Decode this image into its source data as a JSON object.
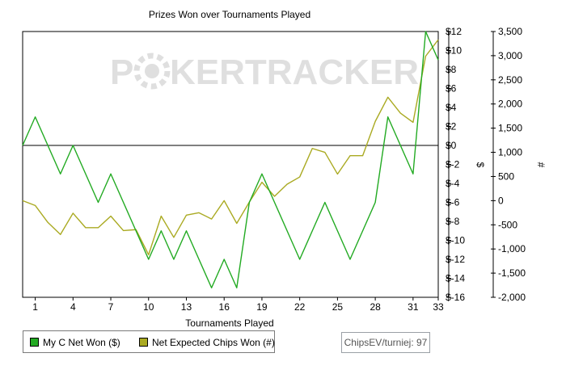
{
  "watermark": {
    "text_left": "P",
    "text_mid": "KERTRACKER"
  },
  "legend": {
    "items": [
      {
        "label": "My C Net Won ($)",
        "color": "#22aa22"
      },
      {
        "label": "Net Expected Chips Won (#)",
        "color": "#aaaa22"
      }
    ]
  },
  "badge": {
    "text": "ChipsEV/turniej: 97"
  },
  "chart_data": {
    "type": "line",
    "title": "Prizes Won over Tournaments Played",
    "xlabel": "Tournaments Played",
    "ylabel_right_inner": "$",
    "ylabel_right_outer": "#",
    "xlim": [
      0,
      33
    ],
    "x_ticks": [
      1,
      4,
      7,
      10,
      13,
      16,
      19,
      22,
      25,
      28,
      31,
      33
    ],
    "y_left": {
      "lim": [
        -16,
        12
      ],
      "ticks": [
        12,
        10,
        8,
        6,
        4,
        2,
        0,
        -2,
        -4,
        -6,
        -8,
        -10,
        -12,
        -14,
        -16
      ],
      "tick_labels": [
        "$12",
        "$10",
        "$8",
        "$6",
        "$4",
        "$2",
        "$0",
        "$-2",
        "$-4",
        "$-6",
        "$-8",
        "$-10",
        "$-12",
        "$-14",
        "$-16"
      ]
    },
    "y_right": {
      "lim": [
        -2000,
        3500
      ],
      "ticks": [
        3500,
        3000,
        2500,
        2000,
        1500,
        1000,
        500,
        0,
        -500,
        -1000,
        -1500,
        -2000
      ],
      "tick_labels": [
        "3,500",
        "3,000",
        "2,500",
        "2,000",
        "1,500",
        "1,000",
        "500",
        "0",
        "-500",
        "-1,000",
        "-1,500",
        "-2,000"
      ]
    },
    "zero_line": 0,
    "grid": false,
    "series": [
      {
        "name": "My C Net Won ($)",
        "axis": "left",
        "color": "#22aa22",
        "x": [
          0,
          1,
          2,
          3,
          4,
          5,
          6,
          7,
          8,
          9,
          10,
          11,
          12,
          13,
          14,
          15,
          16,
          17,
          18,
          19,
          20,
          21,
          22,
          23,
          24,
          25,
          26,
          27,
          28,
          29,
          30,
          31,
          32,
          33
        ],
        "y": [
          0,
          3,
          0,
          -3,
          0,
          -3,
          -6,
          -3,
          -6,
          -9,
          -12,
          -9,
          -12,
          -9,
          -12,
          -15,
          -12,
          -15,
          -6,
          -3,
          -6,
          -9,
          -12,
          -9,
          -6,
          -9,
          -12,
          -9,
          -6,
          3,
          0,
          -3,
          12,
          9
        ]
      },
      {
        "name": "Net Expected Chips Won (#)",
        "axis": "right",
        "color": "#aaaa22",
        "x": [
          0,
          1,
          2,
          3,
          4,
          5,
          6,
          7,
          8,
          9,
          10,
          11,
          12,
          13,
          14,
          15,
          16,
          17,
          18,
          19,
          20,
          21,
          22,
          23,
          24,
          25,
          26,
          27,
          28,
          29,
          30,
          31,
          32,
          33
        ],
        "y": [
          0,
          -100,
          -450,
          -700,
          -260,
          -560,
          -560,
          -320,
          -620,
          -600,
          -1120,
          -320,
          -760,
          -300,
          -250,
          -380,
          0,
          -470,
          -30,
          380,
          90,
          340,
          490,
          1080,
          1000,
          550,
          930,
          930,
          1640,
          2140,
          1810,
          1620,
          2990,
          3330
        ]
      }
    ]
  }
}
